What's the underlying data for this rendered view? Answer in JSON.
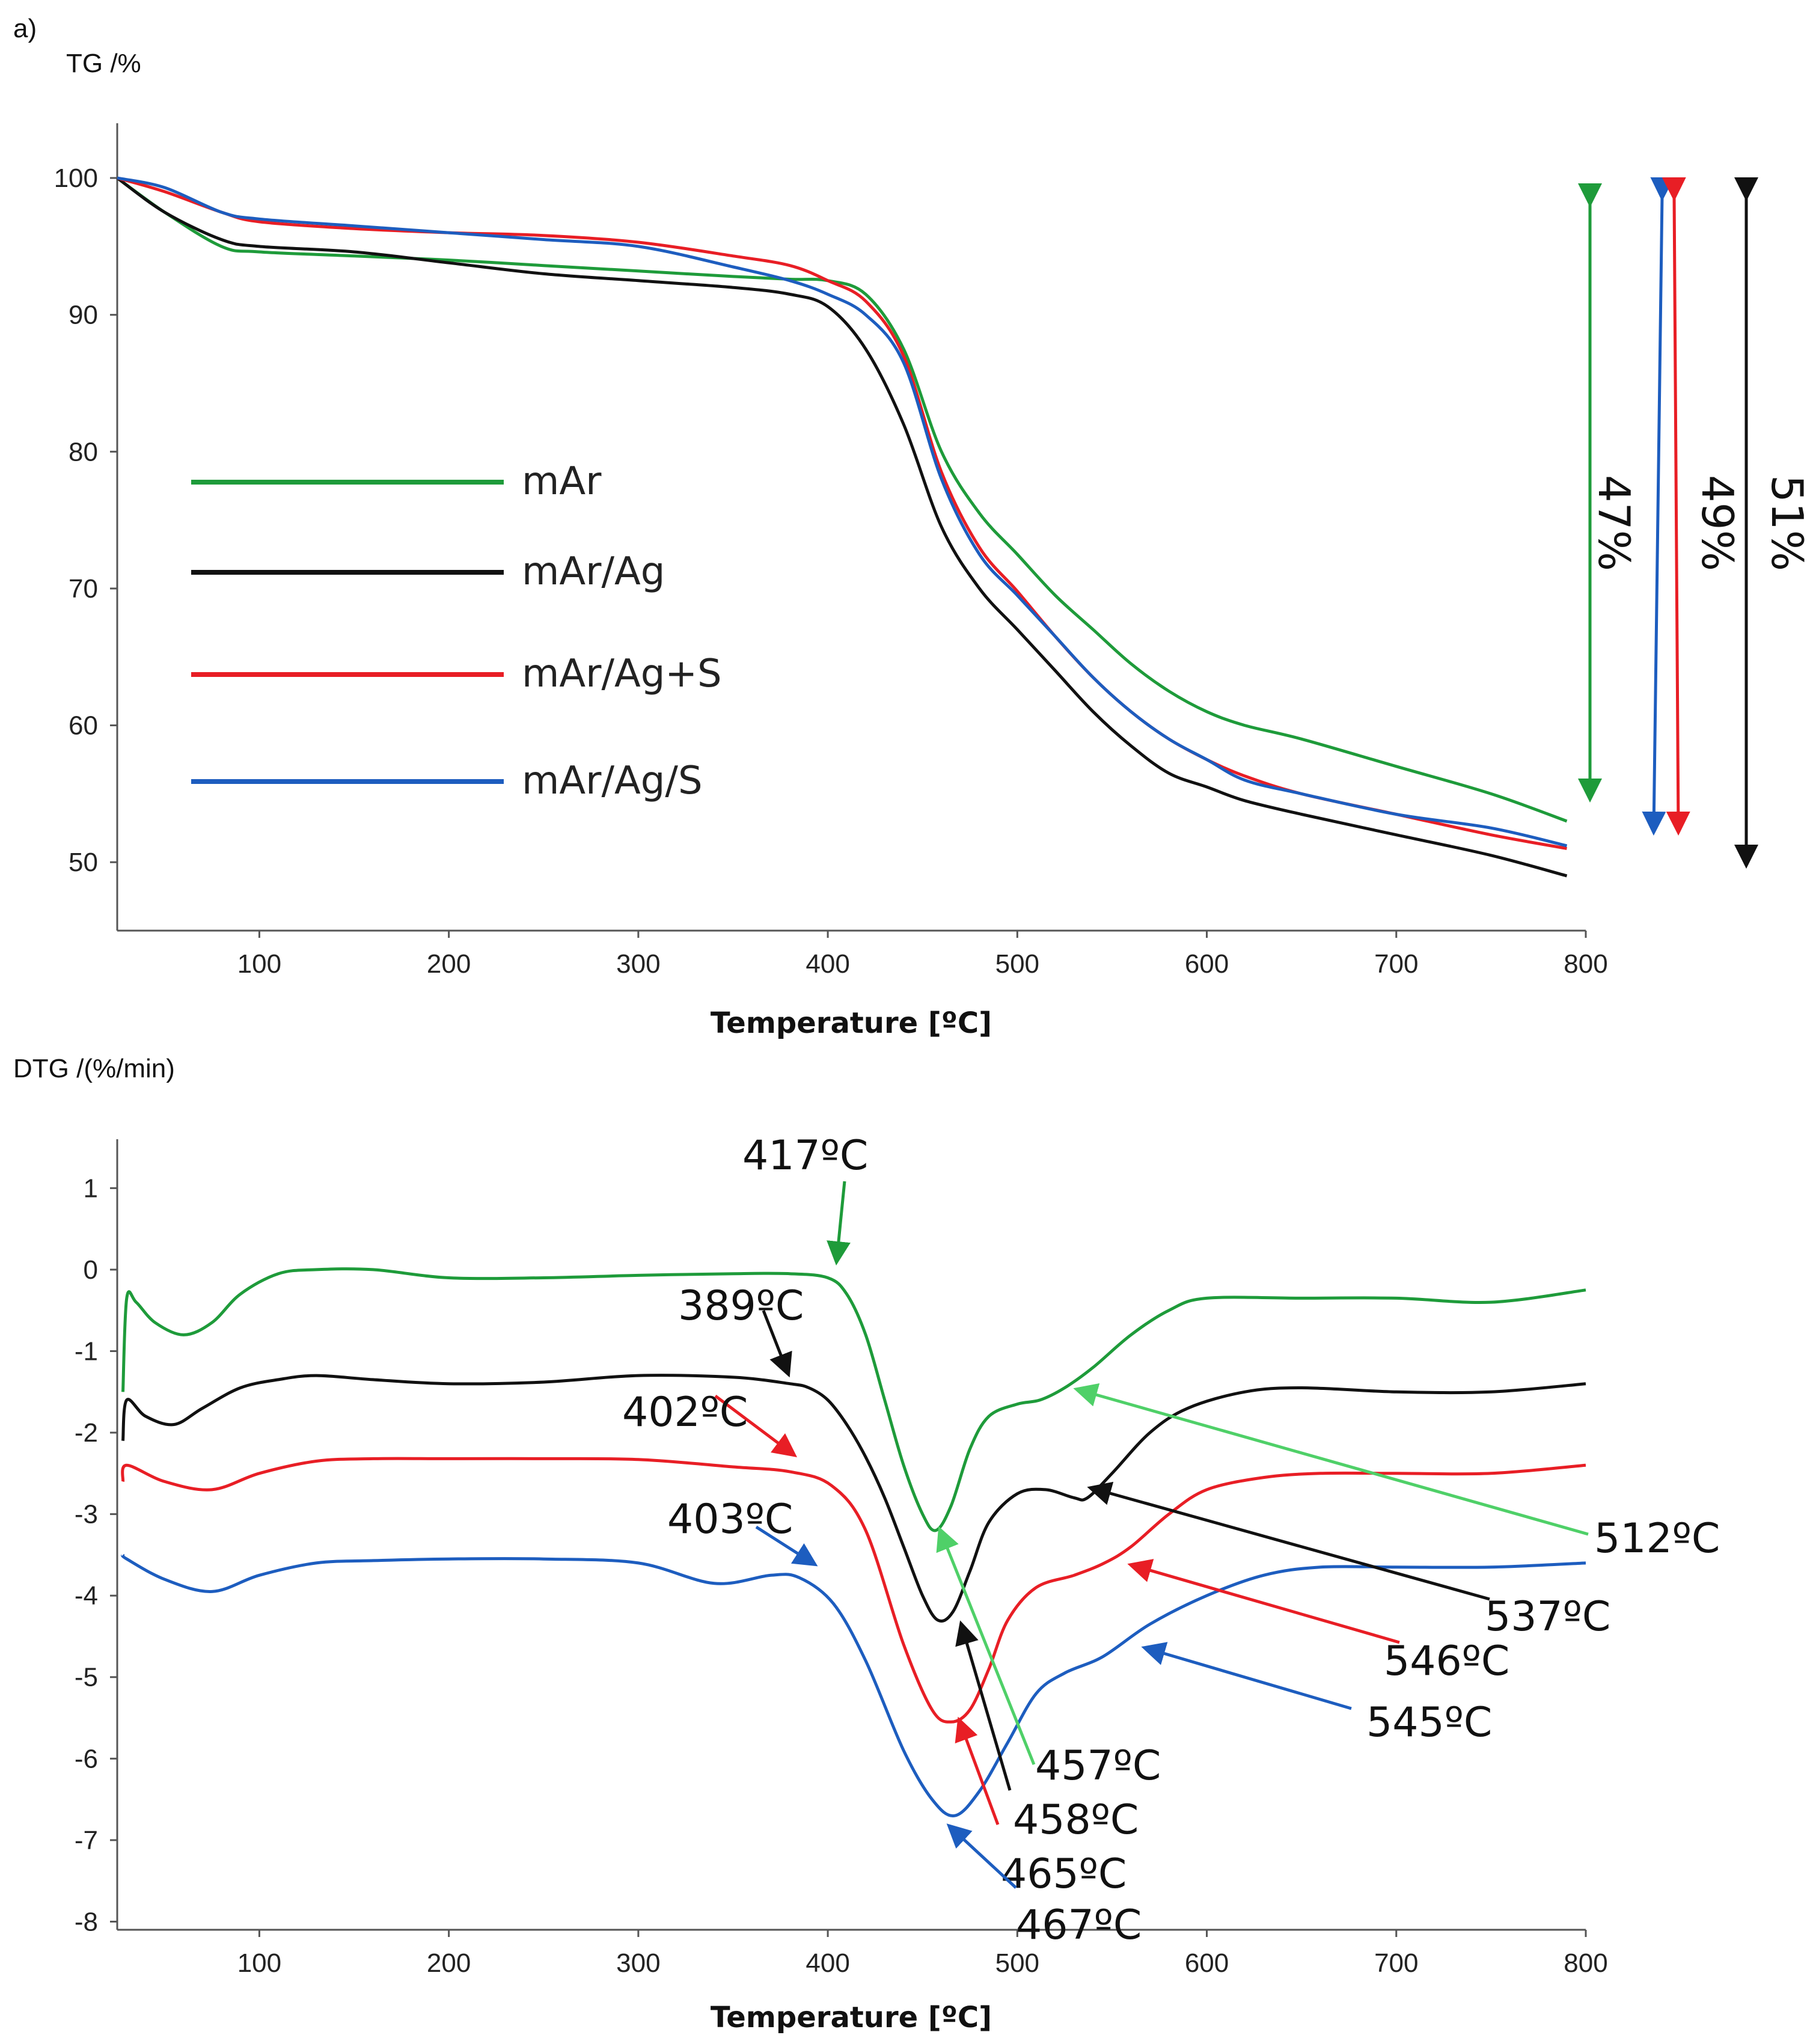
{
  "panel_label": "a)",
  "chart_data": [
    {
      "type": "line",
      "ylabel": "TG /%",
      "xlabel": "Temperature [ºC]",
      "xlim": [
        25,
        800
      ],
      "ylim": [
        45,
        104
      ],
      "xticks": [
        100,
        200,
        300,
        400,
        500,
        600,
        700,
        800
      ],
      "xtick_labels": [
        "100",
        "200",
        "300",
        "400",
        "500",
        "600",
        "700",
        "800"
      ],
      "yticks": [
        50,
        60,
        70,
        80,
        90,
        100
      ],
      "ytick_labels": [
        "50",
        "60",
        "70",
        "80",
        "90",
        "100"
      ],
      "series": [
        {
          "name": "mAr",
          "color": "#1e9b3a",
          "x": [
            25,
            50,
            80,
            100,
            150,
            200,
            250,
            300,
            350,
            380,
            400,
            420,
            440,
            460,
            480,
            500,
            520,
            540,
            560,
            580,
            600,
            620,
            650,
            700,
            750,
            790
          ],
          "y": [
            100,
            97.5,
            95,
            94.6,
            94.3,
            94,
            93.6,
            93.2,
            92.8,
            92.6,
            92.5,
            91.5,
            87.5,
            80,
            75.5,
            72.5,
            69.5,
            67,
            64.5,
            62.5,
            61,
            60,
            59,
            57,
            55,
            53
          ]
        },
        {
          "name": "mAr/Ag",
          "color": "#111111",
          "x": [
            25,
            50,
            80,
            100,
            150,
            200,
            250,
            300,
            350,
            380,
            400,
            420,
            440,
            460,
            480,
            500,
            520,
            540,
            560,
            580,
            600,
            620,
            650,
            700,
            750,
            790
          ],
          "y": [
            100,
            97.5,
            95.5,
            95,
            94.6,
            93.8,
            93,
            92.5,
            92,
            91.5,
            90.6,
            87.5,
            82,
            74.5,
            70,
            67,
            64,
            61,
            58.5,
            56.5,
            55.5,
            54.5,
            53.5,
            52,
            50.5,
            49
          ]
        },
        {
          "name": "mAr/Ag+S",
          "color": "#e81e25",
          "x": [
            25,
            50,
            80,
            100,
            150,
            200,
            250,
            300,
            350,
            380,
            400,
            420,
            440,
            460,
            480,
            500,
            520,
            540,
            560,
            580,
            600,
            620,
            650,
            700,
            750,
            790
          ],
          "y": [
            100,
            99,
            97.5,
            96.8,
            96.3,
            96,
            95.8,
            95.3,
            94.3,
            93.6,
            92.5,
            91,
            87,
            78.5,
            73,
            69.8,
            66.5,
            63.5,
            61,
            59,
            57.5,
            56.3,
            55,
            53.5,
            52,
            51
          ]
        },
        {
          "name": "mAr/Ag/S",
          "color": "#1d5dbf",
          "x": [
            25,
            50,
            80,
            100,
            150,
            200,
            250,
            300,
            350,
            380,
            400,
            420,
            440,
            460,
            480,
            500,
            520,
            540,
            560,
            580,
            600,
            620,
            650,
            700,
            750,
            790
          ],
          "y": [
            100,
            99.3,
            97.5,
            97,
            96.5,
            96,
            95.5,
            95,
            93.5,
            92.5,
            91.5,
            90,
            86.5,
            78,
            72.5,
            69.5,
            66.5,
            63.5,
            61,
            59,
            57.5,
            56,
            55,
            53.5,
            52.5,
            51.2
          ]
        }
      ],
      "legend": [
        {
          "label": "mAr",
          "color": "#1e9b3a"
        },
        {
          "label": "mAr/Ag",
          "color": "#111111"
        },
        {
          "label": "mAr/Ag+S",
          "color": "#e81e25"
        },
        {
          "label": "mAr/Ag/S",
          "color": "#1d5dbf"
        }
      ],
      "mass_loss_annotations": [
        {
          "label": "47%",
          "color": "#1e9b3a"
        },
        {
          "label": "49%",
          "colors": [
            "#1d5dbf",
            "#e81e25"
          ]
        },
        {
          "label": "51%",
          "color": "#111111"
        }
      ]
    },
    {
      "type": "line",
      "ylabel": "DTG /(%/min)",
      "xlabel": "Temperature [ºC]",
      "xlim": [
        25,
        800
      ],
      "ylim": [
        -8.1,
        1.6
      ],
      "xticks": [
        100,
        200,
        300,
        400,
        500,
        600,
        700,
        800
      ],
      "xtick_labels": [
        "100",
        "200",
        "300",
        "400",
        "500",
        "600",
        "700",
        "800"
      ],
      "yticks": [
        1,
        0,
        -1,
        -2,
        -3,
        -4,
        -5,
        -6,
        -7,
        -8
      ],
      "ytick_labels": [
        "1",
        "0",
        "-1",
        "-2",
        "-3",
        "-4",
        "-5",
        "-6",
        "-7",
        "-8"
      ],
      "series": [
        {
          "name": "mAr",
          "color": "#1e9b3a",
          "x": [
            28,
            30,
            35,
            45,
            60,
            75,
            90,
            110,
            130,
            160,
            200,
            250,
            300,
            350,
            380,
            400,
            410,
            420,
            430,
            440,
            450,
            457,
            465,
            475,
            485,
            500,
            512,
            525,
            540,
            560,
            580,
            600,
            650,
            700,
            750,
            800
          ],
          "y": [
            -1.5,
            -0.35,
            -0.4,
            -0.65,
            -0.8,
            -0.65,
            -0.3,
            -0.05,
            0,
            0,
            -0.1,
            -0.1,
            -0.07,
            -0.05,
            -0.05,
            -0.1,
            -0.3,
            -0.8,
            -1.6,
            -2.4,
            -3.0,
            -3.2,
            -2.9,
            -2.2,
            -1.8,
            -1.65,
            -1.6,
            -1.45,
            -1.2,
            -0.8,
            -0.5,
            -0.35,
            -0.35,
            -0.35,
            -0.4,
            -0.25
          ]
        },
        {
          "name": "mAr/Ag",
          "color": "#111111",
          "x": [
            28,
            30,
            40,
            55,
            70,
            90,
            110,
            130,
            160,
            200,
            250,
            300,
            350,
            380,
            390,
            400,
            410,
            420,
            430,
            440,
            450,
            458,
            466,
            475,
            485,
            500,
            515,
            530,
            537,
            550,
            570,
            590,
            620,
            650,
            700,
            750,
            800
          ],
          "y": [
            -2.1,
            -1.6,
            -1.8,
            -1.9,
            -1.7,
            -1.45,
            -1.35,
            -1.3,
            -1.35,
            -1.4,
            -1.38,
            -1.3,
            -1.32,
            -1.4,
            -1.45,
            -1.6,
            -1.9,
            -2.3,
            -2.8,
            -3.4,
            -4.0,
            -4.3,
            -4.2,
            -3.7,
            -3.1,
            -2.75,
            -2.7,
            -2.8,
            -2.8,
            -2.5,
            -2.0,
            -1.7,
            -1.5,
            -1.45,
            -1.5,
            -1.5,
            -1.4
          ]
        },
        {
          "name": "mAr/Ag+S",
          "color": "#e81e25",
          "x": [
            28,
            30,
            50,
            75,
            100,
            130,
            160,
            200,
            250,
            300,
            350,
            380,
            402,
            420,
            440,
            455,
            465,
            475,
            485,
            495,
            510,
            530,
            546,
            560,
            580,
            600,
            630,
            660,
            700,
            750,
            800
          ],
          "y": [
            -2.6,
            -2.4,
            -2.6,
            -2.7,
            -2.5,
            -2.35,
            -2.32,
            -2.32,
            -2.32,
            -2.33,
            -2.42,
            -2.48,
            -2.65,
            -3.2,
            -4.6,
            -5.4,
            -5.55,
            -5.4,
            -4.9,
            -4.3,
            -3.9,
            -3.75,
            -3.6,
            -3.4,
            -3.0,
            -2.7,
            -2.55,
            -2.5,
            -2.5,
            -2.5,
            -2.4
          ]
        },
        {
          "name": "mAr/Ag/S",
          "color": "#1d5dbf",
          "x": [
            28,
            30,
            50,
            75,
            100,
            130,
            160,
            200,
            250,
            300,
            340,
            370,
            385,
            403,
            420,
            440,
            455,
            467,
            480,
            495,
            510,
            525,
            545,
            570,
            600,
            630,
            660,
            700,
            750,
            800
          ],
          "y": [
            -3.5,
            -3.55,
            -3.8,
            -3.95,
            -3.75,
            -3.6,
            -3.57,
            -3.55,
            -3.55,
            -3.6,
            -3.85,
            -3.75,
            -3.78,
            -4.1,
            -4.8,
            -5.9,
            -6.5,
            -6.7,
            -6.4,
            -5.8,
            -5.2,
            -4.95,
            -4.75,
            -4.35,
            -4.0,
            -3.75,
            -3.65,
            -3.65,
            -3.65,
            -3.6
          ]
        }
      ],
      "annotations": [
        {
          "label": "417ºC",
          "color": "#1e9b3a"
        },
        {
          "label": "389ºC",
          "color": "#111111"
        },
        {
          "label": "402ºC",
          "color": "#e81e25"
        },
        {
          "label": "403ºC",
          "color": "#1d5dbf"
        },
        {
          "label": "512ºC",
          "color": "#4fd068"
        },
        {
          "label": "537ºC",
          "color": "#111111"
        },
        {
          "label": "546ºC",
          "color": "#e81e25"
        },
        {
          "label": "545ºC",
          "color": "#1d5dbf"
        },
        {
          "label": "457ºC",
          "color": "#4fd068"
        },
        {
          "label": "458ºC",
          "color": "#111111"
        },
        {
          "label": "465ºC",
          "color": "#e81e25"
        },
        {
          "label": "467ºC",
          "color": "#1d5dbf"
        }
      ]
    }
  ]
}
